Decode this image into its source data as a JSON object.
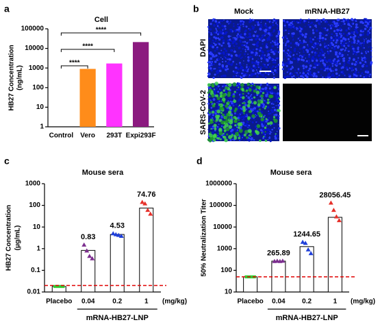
{
  "chart_data": [
    {
      "type": "bar",
      "panel": "a",
      "title": "Cell",
      "ylabel": [
        "HB27 Concentration",
        "(ng/mL)"
      ],
      "categories": [
        "Control",
        "Vero",
        "293T",
        "Expi293F"
      ],
      "values": [
        null,
        900,
        1700,
        21000
      ],
      "colors": [
        "#ff8c1a",
        "#ff8c1a",
        "#ff33ff",
        "#8b1a7f"
      ],
      "log_y": true,
      "ylim": [
        1,
        100000
      ],
      "yticks": [
        1,
        10,
        100,
        1000,
        10000,
        100000
      ],
      "brackets": [
        {
          "from": "Control",
          "to": "Vero",
          "label": "****"
        },
        {
          "from": "Control",
          "to": "293T",
          "label": "****"
        },
        {
          "from": "Control",
          "to": "Expi293F",
          "label": "****"
        }
      ]
    },
    {
      "type": "dotbar",
      "panel": "c",
      "title": "Mouse sera",
      "ylabel": [
        "HB27 Concentration",
        "(μg/mL)"
      ],
      "categories": [
        "Placebo",
        "0.04",
        "0.2",
        "1"
      ],
      "xunit": "(mg/kg)",
      "group_label": "mRNA-HB27-LNP",
      "values": [
        0.018,
        0.83,
        4.53,
        74.76
      ],
      "value_labels": [
        null,
        "0.83",
        "4.53",
        "74.76"
      ],
      "points": [
        [
          0.018,
          0.018,
          0.018,
          0.018
        ],
        [
          1.5,
          0.8,
          0.45,
          0.35
        ],
        [
          5,
          4.5,
          4.2,
          3.8
        ],
        [
          140,
          120,
          60,
          40
        ]
      ],
      "point_colors": [
        "#33cc33",
        "#7b2d8e",
        "#1f3fd9",
        "#e6302a"
      ],
      "threshold": 0.02,
      "threshold_color": "#e00000",
      "log_y": true,
      "ylim": [
        0.01,
        1000
      ],
      "yticks": [
        0.01,
        0.1,
        1,
        10,
        100,
        1000
      ]
    },
    {
      "type": "dotbar",
      "panel": "d",
      "title": "Mouse sera",
      "ylabel": [
        "50% Neutralization Titer"
      ],
      "categories": [
        "Placebo",
        "0.04",
        "0.2",
        "1"
      ],
      "xunit": "(mg/kg)",
      "group_label": "mRNA-HB27-LNP",
      "values": [
        50,
        265.89,
        1244.65,
        28056.45
      ],
      "value_labels": [
        null,
        "265.89",
        "1244.65",
        "28056.45"
      ],
      "points": [
        [
          50,
          50,
          50,
          50
        ],
        [
          260,
          270,
          260,
          270
        ],
        [
          2000,
          1800,
          900,
          600
        ],
        [
          130000,
          60000,
          30000,
          20000
        ]
      ],
      "point_colors": [
        "#33cc33",
        "#7b2d8e",
        "#1f3fd9",
        "#e6302a"
      ],
      "threshold": 50,
      "threshold_color": "#e00000",
      "log_y": true,
      "ylim": [
        10,
        1000000
      ],
      "yticks": [
        10,
        100,
        1000,
        10000,
        100000,
        1000000
      ]
    }
  ],
  "panel_b": {
    "panel": "b",
    "columns": [
      "Mock",
      "mRNA-HB27"
    ],
    "rows": [
      "DAPI",
      "SARS-CoV-2"
    ]
  }
}
